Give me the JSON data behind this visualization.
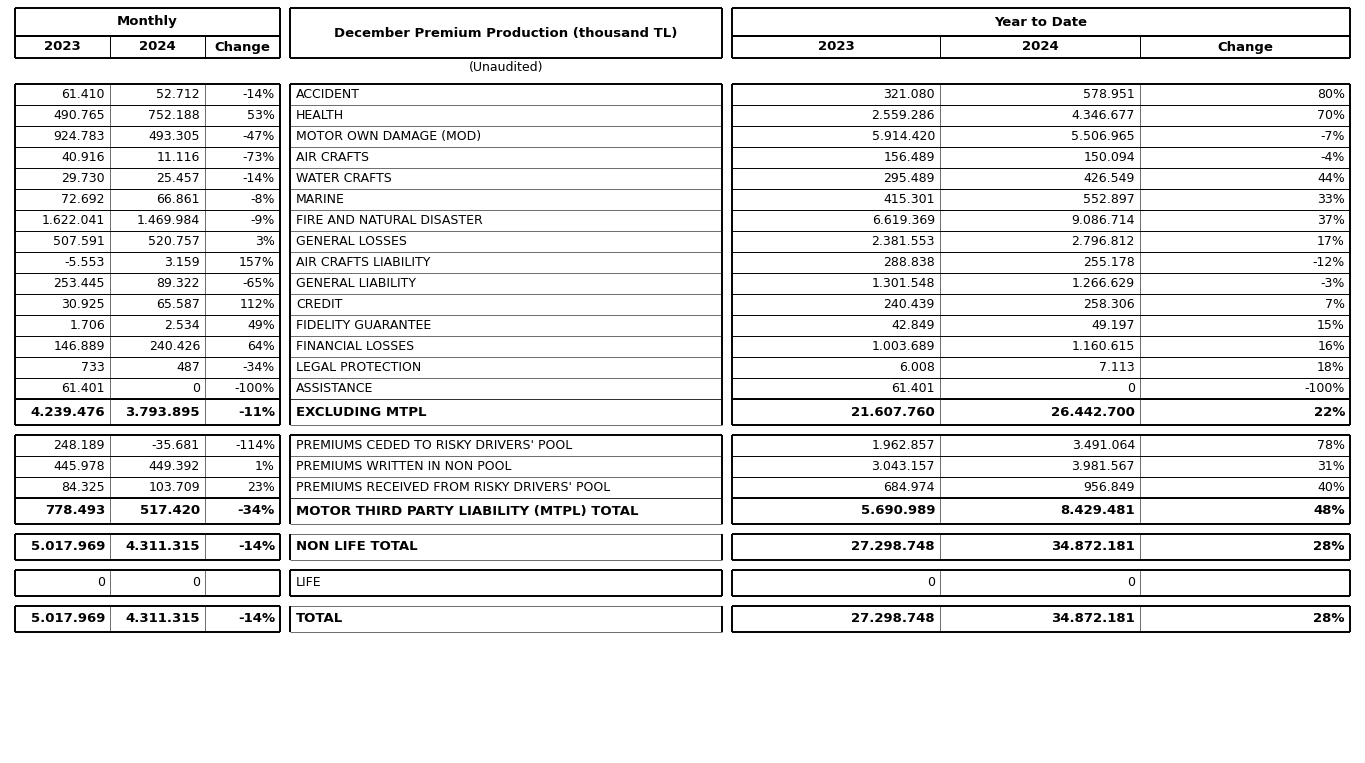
{
  "title_center": "December Premium Production (thousand TL)",
  "subtitle": "(Unaudited)",
  "header_monthly": "Monthly",
  "header_ytd": "Year to Date",
  "rows": [
    {
      "label": "ACCIDENT",
      "m2023": "61.410",
      "m2024": "52.712",
      "mchg": "-14%",
      "ytd2023": "321.080",
      "ytd2024": "578.951",
      "ytdchg": "80%"
    },
    {
      "label": "HEALTH",
      "m2023": "490.765",
      "m2024": "752.188",
      "mchg": "53%",
      "ytd2023": "2.559.286",
      "ytd2024": "4.346.677",
      "ytdchg": "70%"
    },
    {
      "label": "MOTOR OWN DAMAGE (MOD)",
      "m2023": "924.783",
      "m2024": "493.305",
      "mchg": "-47%",
      "ytd2023": "5.914.420",
      "ytd2024": "5.506.965",
      "ytdchg": "-7%"
    },
    {
      "label": "AIR CRAFTS",
      "m2023": "40.916",
      "m2024": "11.116",
      "mchg": "-73%",
      "ytd2023": "156.489",
      "ytd2024": "150.094",
      "ytdchg": "-4%"
    },
    {
      "label": "WATER CRAFTS",
      "m2023": "29.730",
      "m2024": "25.457",
      "mchg": "-14%",
      "ytd2023": "295.489",
      "ytd2024": "426.549",
      "ytdchg": "44%"
    },
    {
      "label": "MARINE",
      "m2023": "72.692",
      "m2024": "66.861",
      "mchg": "-8%",
      "ytd2023": "415.301",
      "ytd2024": "552.897",
      "ytdchg": "33%"
    },
    {
      "label": "FIRE AND NATURAL DISASTER",
      "m2023": "1.622.041",
      "m2024": "1.469.984",
      "mchg": "-9%",
      "ytd2023": "6.619.369",
      "ytd2024": "9.086.714",
      "ytdchg": "37%"
    },
    {
      "label": "GENERAL LOSSES",
      "m2023": "507.591",
      "m2024": "520.757",
      "mchg": "3%",
      "ytd2023": "2.381.553",
      "ytd2024": "2.796.812",
      "ytdchg": "17%"
    },
    {
      "label": "AIR CRAFTS LIABILITY",
      "m2023": "-5.553",
      "m2024": "3.159",
      "mchg": "157%",
      "ytd2023": "288.838",
      "ytd2024": "255.178",
      "ytdchg": "-12%"
    },
    {
      "label": "GENERAL LIABILITY",
      "m2023": "253.445",
      "m2024": "89.322",
      "mchg": "-65%",
      "ytd2023": "1.301.548",
      "ytd2024": "1.266.629",
      "ytdchg": "-3%"
    },
    {
      "label": "CREDIT",
      "m2023": "30.925",
      "m2024": "65.587",
      "mchg": "112%",
      "ytd2023": "240.439",
      "ytd2024": "258.306",
      "ytdchg": "7%"
    },
    {
      "label": "FIDELITY GUARANTEE",
      "m2023": "1.706",
      "m2024": "2.534",
      "mchg": "49%",
      "ytd2023": "42.849",
      "ytd2024": "49.197",
      "ytdchg": "15%"
    },
    {
      "label": "FINANCIAL LOSSES",
      "m2023": "146.889",
      "m2024": "240.426",
      "mchg": "64%",
      "ytd2023": "1.003.689",
      "ytd2024": "1.160.615",
      "ytdchg": "16%"
    },
    {
      "label": "LEGAL PROTECTION",
      "m2023": "733",
      "m2024": "487",
      "mchg": "-34%",
      "ytd2023": "6.008",
      "ytd2024": "7.113",
      "ytdchg": "18%"
    },
    {
      "label": "ASSISTANCE",
      "m2023": "61.401",
      "m2024": "0",
      "mchg": "-100%",
      "ytd2023": "61.401",
      "ytd2024": "0",
      "ytdchg": "-100%"
    }
  ],
  "subtotal_row": {
    "label": "EXCLUDING MTPL",
    "m2023": "4.239.476",
    "m2024": "3.793.895",
    "mchg": "-11%",
    "ytd2023": "21.607.760",
    "ytd2024": "26.442.700",
    "ytdchg": "22%"
  },
  "mtpl_rows": [
    {
      "label": "PREMIUMS CEDED TO RISKY DRIVERS' POOL",
      "m2023": "248.189",
      "m2024": "-35.681",
      "mchg": "-114%",
      "ytd2023": "1.962.857",
      "ytd2024": "3.491.064",
      "ytdchg": "78%"
    },
    {
      "label": "PREMIUMS WRITTEN IN NON POOL",
      "m2023": "445.978",
      "m2024": "449.392",
      "mchg": "1%",
      "ytd2023": "3.043.157",
      "ytd2024": "3.981.567",
      "ytdchg": "31%"
    },
    {
      "label": "PREMIUMS RECEIVED FROM RISKY DRIVERS' POOL",
      "m2023": "84.325",
      "m2024": "103.709",
      "mchg": "23%",
      "ytd2023": "684.974",
      "ytd2024": "956.849",
      "ytdchg": "40%"
    }
  ],
  "mtpl_total": {
    "label": "MOTOR THIRD PARTY LIABILITY (MTPL) TOTAL",
    "m2023": "778.493",
    "m2024": "517.420",
    "mchg": "-34%",
    "ytd2023": "5.690.989",
    "ytd2024": "8.429.481",
    "ytdchg": "48%"
  },
  "nonlife_total": {
    "label": "NON LIFE TOTAL",
    "m2023": "5.017.969",
    "m2024": "4.311.315",
    "mchg": "-14%",
    "ytd2023": "27.298.748",
    "ytd2024": "34.872.181",
    "ytdchg": "28%"
  },
  "life_row": {
    "label": "LIFE",
    "m2023": "0",
    "m2024": "0",
    "mchg": "",
    "ytd2023": "0",
    "ytd2024": "0",
    "ytdchg": ""
  },
  "total_row": {
    "label": "TOTAL",
    "m2023": "5.017.969",
    "m2024": "4.311.315",
    "mchg": "-14%",
    "ytd2023": "27.298.748",
    "ytd2024": "34.872.181",
    "ytdchg": "28%"
  },
  "font_size": 9.0,
  "header_font_size": 9.5,
  "bold_font_size": 9.5
}
